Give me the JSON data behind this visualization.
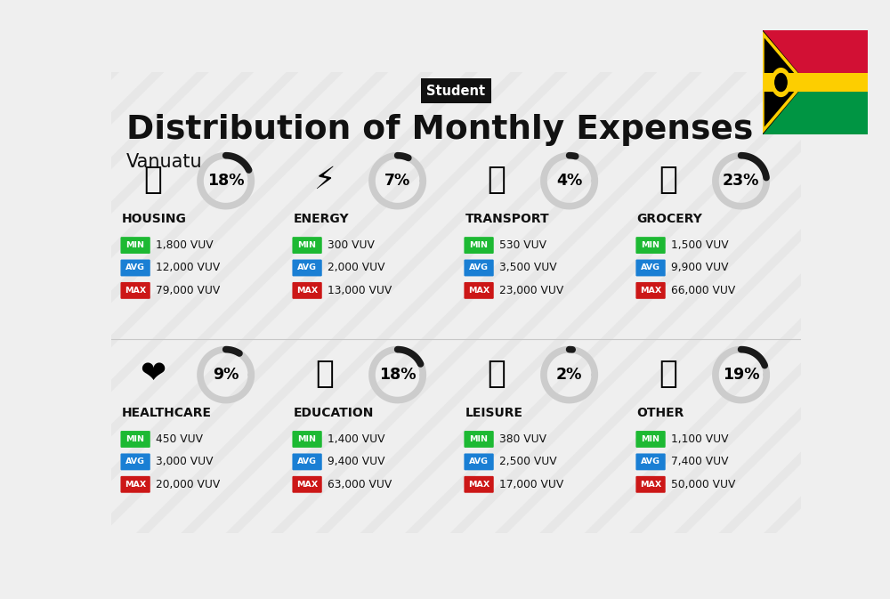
{
  "title": "Distribution of Monthly Expenses",
  "subtitle": "Student",
  "country": "Vanuatu",
  "bg_color": "#efefef",
  "categories": [
    {
      "name": "HOUSING",
      "percent": 18,
      "min_val": "1,800 VUV",
      "avg_val": "12,000 VUV",
      "max_val": "79,000 VUV",
      "row": 0,
      "col": 0
    },
    {
      "name": "ENERGY",
      "percent": 7,
      "min_val": "300 VUV",
      "avg_val": "2,000 VUV",
      "max_val": "13,000 VUV",
      "row": 0,
      "col": 1
    },
    {
      "name": "TRANSPORT",
      "percent": 4,
      "min_val": "530 VUV",
      "avg_val": "3,500 VUV",
      "max_val": "23,000 VUV",
      "row": 0,
      "col": 2
    },
    {
      "name": "GROCERY",
      "percent": 23,
      "min_val": "1,500 VUV",
      "avg_val": "9,900 VUV",
      "max_val": "66,000 VUV",
      "row": 0,
      "col": 3
    },
    {
      "name": "HEALTHCARE",
      "percent": 9,
      "min_val": "450 VUV",
      "avg_val": "3,000 VUV",
      "max_val": "20,000 VUV",
      "row": 1,
      "col": 0
    },
    {
      "name": "EDUCATION",
      "percent": 18,
      "min_val": "1,400 VUV",
      "avg_val": "9,400 VUV",
      "max_val": "63,000 VUV",
      "row": 1,
      "col": 1
    },
    {
      "name": "LEISURE",
      "percent": 2,
      "min_val": "380 VUV",
      "avg_val": "2,500 VUV",
      "max_val": "17,000 VUV",
      "row": 1,
      "col": 2
    },
    {
      "name": "OTHER",
      "percent": 19,
      "min_val": "1,100 VUV",
      "avg_val": "7,400 VUV",
      "max_val": "50,000 VUV",
      "row": 1,
      "col": 3
    }
  ],
  "min_color": "#1db933",
  "avg_color": "#1a7fd4",
  "max_color": "#cc1717",
  "arc_color_filled": "#1a1a1a",
  "arc_color_bg": "#cccccc",
  "title_color": "#111111",
  "subtitle_bg": "#111111",
  "subtitle_color": "#ffffff",
  "category_name_color": "#111111",
  "value_text_color": "#111111",
  "diag_stripe_color": "#e4e4e4"
}
